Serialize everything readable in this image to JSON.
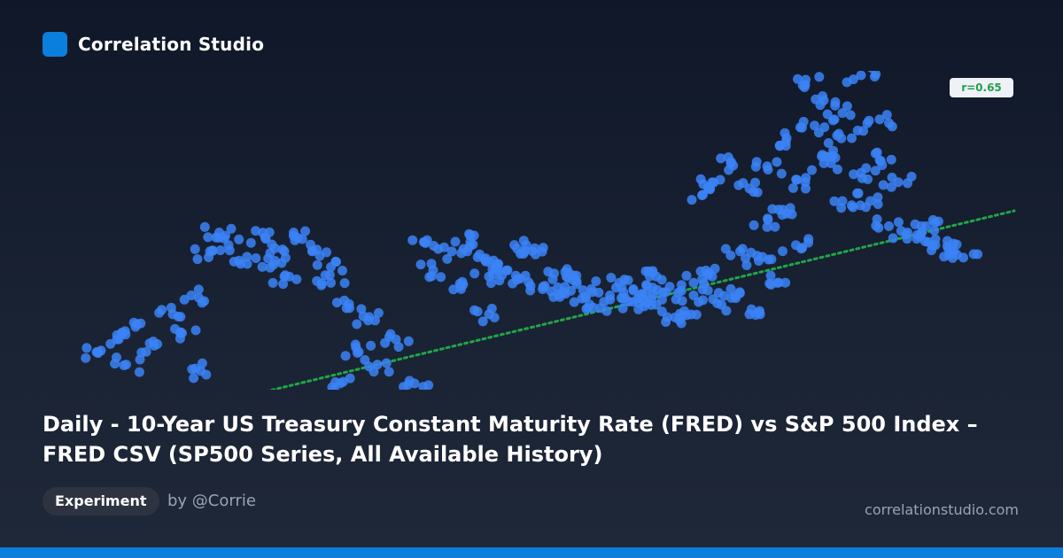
{
  "brand": {
    "name": "Correlation Studio",
    "logo_color": "#0b7fde"
  },
  "chart_data": {
    "type": "scatter",
    "title": "Daily - 10-Year US Treasury Constant Maturity Rate (FRED) vs S&P 500 Index – FRED CSV (SP500 Series, All Available History)",
    "annotation": "r=0.65",
    "correlation": 0.65,
    "grid": false,
    "point_color": "#3b82f6",
    "trendline_color": "#22a447",
    "trendline_style": "dotted",
    "x": [
      0.02,
      0.04,
      0.05,
      0.06,
      0.08,
      0.1,
      0.11,
      0.12,
      0.13,
      0.14,
      0.15,
      0.16,
      0.18,
      0.2,
      0.21,
      0.22,
      0.22,
      0.23,
      0.25,
      0.27,
      0.27,
      0.28,
      0.29,
      0.3,
      0.31,
      0.32,
      0.34,
      0.36,
      0.37,
      0.38,
      0.4,
      0.41,
      0.42,
      0.43,
      0.44,
      0.44,
      0.45,
      0.46,
      0.47,
      0.48,
      0.49,
      0.5,
      0.51,
      0.52,
      0.53,
      0.54,
      0.55,
      0.56,
      0.57,
      0.58,
      0.59,
      0.6,
      0.61,
      0.62,
      0.62,
      0.63,
      0.64,
      0.65,
      0.66,
      0.66,
      0.67,
      0.68,
      0.68,
      0.69,
      0.7,
      0.7,
      0.71,
      0.72,
      0.72,
      0.73,
      0.74,
      0.74,
      0.75,
      0.76,
      0.76,
      0.77,
      0.78,
      0.78,
      0.79,
      0.8,
      0.8,
      0.81,
      0.82,
      0.82,
      0.83,
      0.84,
      0.84,
      0.85,
      0.86,
      0.86,
      0.87,
      0.88,
      0.89,
      0.9,
      0.91,
      0.92,
      0.94,
      0.95
    ],
    "y": [
      0.12,
      0.16,
      0.08,
      0.2,
      0.14,
      0.24,
      0.18,
      0.3,
      0.06,
      0.44,
      0.5,
      0.46,
      0.4,
      0.48,
      0.41,
      0.44,
      0.36,
      0.5,
      0.44,
      0.39,
      0.34,
      0.02,
      0.26,
      0.12,
      0.22,
      0.08,
      0.16,
      0.02,
      0.47,
      0.38,
      0.44,
      0.32,
      0.47,
      0.43,
      0.36,
      0.24,
      0.4,
      0.38,
      0.35,
      0.46,
      0.43,
      0.33,
      0.37,
      0.31,
      0.35,
      0.29,
      0.32,
      0.26,
      0.3,
      0.34,
      0.28,
      0.29,
      0.33,
      0.36,
      0.27,
      0.31,
      0.23,
      0.25,
      0.34,
      0.3,
      0.62,
      0.66,
      0.36,
      0.27,
      0.72,
      0.32,
      0.44,
      0.64,
      0.24,
      0.41,
      0.54,
      0.7,
      0.34,
      0.56,
      0.8,
      0.46,
      0.66,
      0.97,
      0.84,
      0.72,
      0.92,
      0.76,
      0.6,
      0.88,
      0.8,
      0.69,
      1.0,
      0.6,
      0.86,
      0.73,
      0.52,
      0.66,
      0.5,
      0.48,
      0.52,
      0.46,
      0.44,
      0.42
    ],
    "xlim": [
      0,
      1
    ],
    "ylim": [
      0,
      1
    ]
  },
  "tag": {
    "label": "Experiment"
  },
  "byline": {
    "text": "by @Corrie"
  },
  "footer": {
    "site": "correlationstudio.com"
  }
}
